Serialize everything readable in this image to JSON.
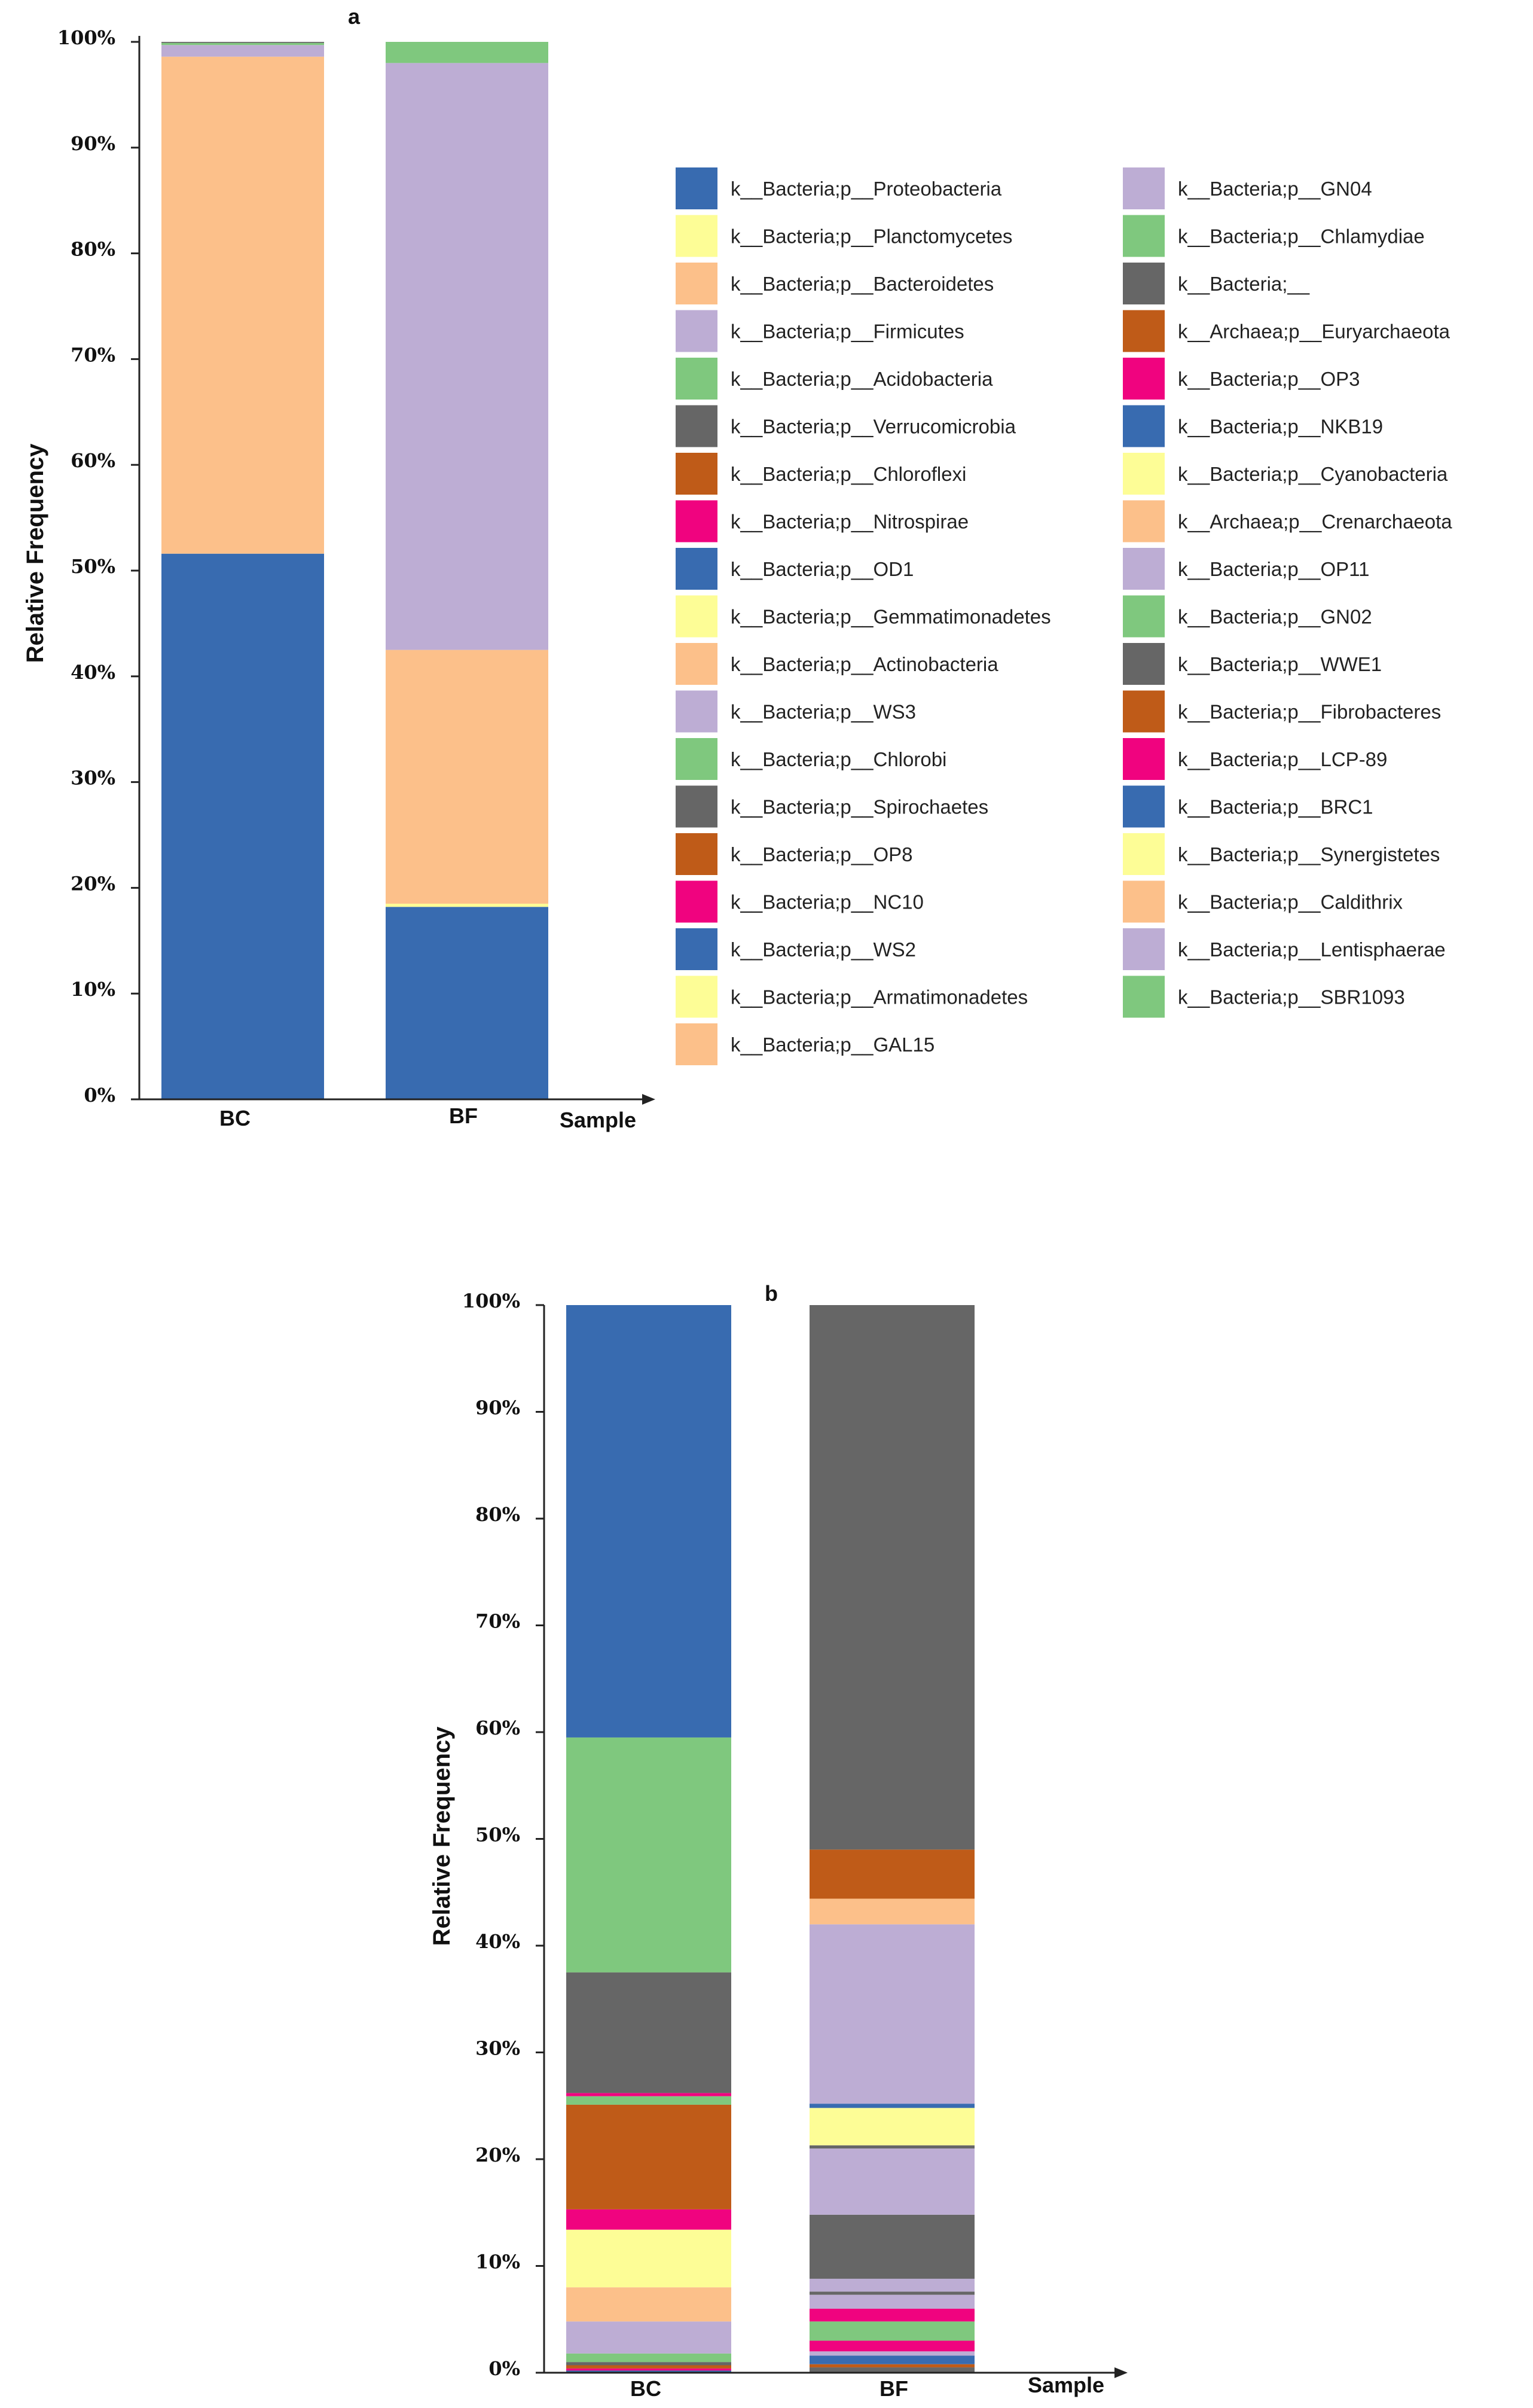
{
  "legend_palette": [
    "#386bb0",
    "#fdfd96",
    "#fcc08a",
    "#bdadd4",
    "#7fc87e",
    "#666666",
    "#bf5b18",
    "#f0037f"
  ],
  "chart_data": [
    {
      "type": "bar",
      "stacked": true,
      "title": "a",
      "xlabel": "Sample",
      "ylabel": "Relative Frequency",
      "ylim": [
        0,
        100
      ],
      "yticks": [
        "0%",
        "10%",
        "20%",
        "30%",
        "40%",
        "50%",
        "60%",
        "70%",
        "80%",
        "90%",
        "100%"
      ],
      "categories": [
        "BC",
        "BF"
      ],
      "series": [
        {
          "name": "k__Bacteria;p__Proteobacteria",
          "color": "#386bb0",
          "values": [
            51.6,
            18.2
          ]
        },
        {
          "name": "k__Bacteria;p__Planctomycetes",
          "color": "#fdfd96",
          "values": [
            0.0,
            0.3
          ]
        },
        {
          "name": "k__Bacteria;p__Bacteroidetes",
          "color": "#fcc08a",
          "values": [
            47.0,
            24.0
          ]
        },
        {
          "name": "k__Bacteria;p__Firmicutes",
          "color": "#bdadd4",
          "values": [
            1.1,
            55.5
          ]
        },
        {
          "name": "k__Bacteria;p__Acidobacteria",
          "color": "#7fc87e",
          "values": [
            0.2,
            2.0
          ]
        },
        {
          "name": "k__Bacteria;p__Verrucomicrobia",
          "color": "#666666",
          "values": [
            0.1,
            0.0
          ]
        }
      ],
      "legend": [
        "k__Bacteria;p__Proteobacteria",
        "k__Bacteria;p__Planctomycetes",
        "k__Bacteria;p__Bacteroidetes",
        "k__Bacteria;p__Firmicutes",
        "k__Bacteria;p__Acidobacteria",
        "k__Bacteria;p__Verrucomicrobia",
        "k__Bacteria;p__Chloroflexi",
        "k__Bacteria;p__Nitrospirae",
        "k__Bacteria;p__OD1",
        "k__Bacteria;p__Gemmatimonadetes",
        "k__Bacteria;p__Actinobacteria",
        "k__Bacteria;p__WS3",
        "k__Bacteria;p__Chlorobi",
        "k__Bacteria;p__Spirochaetes",
        "k__Bacteria;p__OP8",
        "k__Bacteria;p__NC10",
        "k__Bacteria;p__WS2",
        "k__Bacteria;p__Armatimonadetes",
        "k__Bacteria;p__GAL15",
        "k__Bacteria;p__GN04",
        "k__Bacteria;p__Chlamydiae",
        "k__Bacteria;__",
        "k__Archaea;p__Euryarchaeota",
        "k__Bacteria;p__OP3",
        "k__Bacteria;p__NKB19",
        "k__Bacteria;p__Cyanobacteria",
        "k__Archaea;p__Crenarchaeota",
        "k__Bacteria;p__OP11",
        "k__Bacteria;p__GN02",
        "k__Bacteria;p__WWE1",
        "k__Bacteria;p__Fibrobacteres",
        "k__Bacteria;p__LCP-89",
        "k__Bacteria;p__BRC1",
        "k__Bacteria;p__Synergistetes",
        "k__Bacteria;p__Caldithrix",
        "k__Bacteria;p__Lentisphaerae",
        "k__Bacteria;p__SBR1093"
      ]
    },
    {
      "type": "bar",
      "stacked": true,
      "title": "b",
      "xlabel": "Sample",
      "ylabel": "Relative Frequency",
      "ylim": [
        0,
        100
      ],
      "yticks": [
        "0%",
        "10%",
        "20%",
        "30%",
        "40%",
        "50%",
        "60%",
        "70%",
        "80%",
        "90%",
        "100%"
      ],
      "categories": [
        "BC",
        "BF"
      ],
      "segments": [
        {
          "sample": "BC",
          "stack": [
            {
              "color": "#386bb0",
              "value": 0.2
            },
            {
              "color": "#f0037f",
              "value": 0.2
            },
            {
              "color": "#bf5b18",
              "value": 0.3
            },
            {
              "color": "#666666",
              "value": 0.3
            },
            {
              "color": "#7fc87e",
              "value": 0.8
            },
            {
              "color": "#bdadd4",
              "value": 3.0
            },
            {
              "color": "#fcc08a",
              "value": 3.2
            },
            {
              "color": "#fdfd96",
              "value": 5.4
            },
            {
              "color": "#f0037f",
              "value": 1.9
            },
            {
              "color": "#bf5b18",
              "value": 9.8
            },
            {
              "color": "#7fc87e",
              "value": 0.8
            },
            {
              "color": "#f0037f",
              "value": 0.3
            },
            {
              "color": "#666666",
              "value": 11.3
            },
            {
              "color": "#7fc87e",
              "value": 22.0
            },
            {
              "color": "#386bb0",
              "value": 40.5
            }
          ]
        },
        {
          "sample": "BF",
          "stack": [
            {
              "color": "#666666",
              "value": 0.5
            },
            {
              "color": "#bf5b18",
              "value": 0.3
            },
            {
              "color": "#386bb0",
              "value": 0.8
            },
            {
              "color": "#bdadd4",
              "value": 0.4
            },
            {
              "color": "#f0037f",
              "value": 1.0
            },
            {
              "color": "#7fc87e",
              "value": 1.8
            },
            {
              "color": "#f0037f",
              "value": 1.2
            },
            {
              "color": "#bdadd4",
              "value": 1.3
            },
            {
              "color": "#666666",
              "value": 0.3
            },
            {
              "color": "#bdadd4",
              "value": 1.2
            },
            {
              "color": "#666666",
              "value": 6.0
            },
            {
              "color": "#bdadd4",
              "value": 6.2
            },
            {
              "color": "#666666",
              "value": 0.3
            },
            {
              "color": "#fdfd96",
              "value": 3.5
            },
            {
              "color": "#386bb0",
              "value": 0.4
            },
            {
              "color": "#bdadd4",
              "value": 16.8
            },
            {
              "color": "#fcc08a",
              "value": 2.4
            },
            {
              "color": "#bf5b18",
              "value": 4.6
            },
            {
              "color": "#666666",
              "value": 51.0
            }
          ]
        }
      ]
    }
  ]
}
